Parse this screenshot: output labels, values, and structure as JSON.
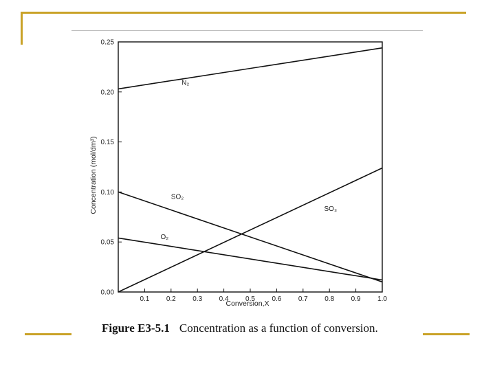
{
  "slide": {
    "accent_color": "#c9a227"
  },
  "caption": {
    "number": "Figure E3-5.1",
    "text": "Concentration as a function of conversion."
  },
  "chart_data": {
    "type": "line",
    "xlabel": "Conversion,X",
    "ylabel": "Concentration (mol/dm³)",
    "xlim": [
      0,
      1.0
    ],
    "ylim": [
      0,
      0.25
    ],
    "x_ticks": [
      "0.1",
      "0.2",
      "0.3",
      "0.4",
      "0.5",
      "0.6",
      "0.7",
      "0.8",
      "0.9",
      "1.0"
    ],
    "y_ticks": [
      "0.00",
      "0.05",
      "0.10",
      "0.15",
      "0.20",
      "0.25"
    ],
    "grid": false,
    "series": [
      {
        "name": "N₂",
        "x": [
          0,
          1.0
        ],
        "values": [
          0.203,
          0.244
        ],
        "color": "#111111"
      },
      {
        "name": "SO₂",
        "x": [
          0,
          1.0
        ],
        "values": [
          0.1,
          0.01
        ],
        "color": "#111111"
      },
      {
        "name": "O₂",
        "x": [
          0,
          1.0
        ],
        "values": [
          0.054,
          0.012
        ],
        "color": "#111111"
      },
      {
        "name": "SO₃",
        "x": [
          0,
          1.0
        ],
        "values": [
          0.0,
          0.124
        ],
        "color": "#111111"
      }
    ]
  }
}
